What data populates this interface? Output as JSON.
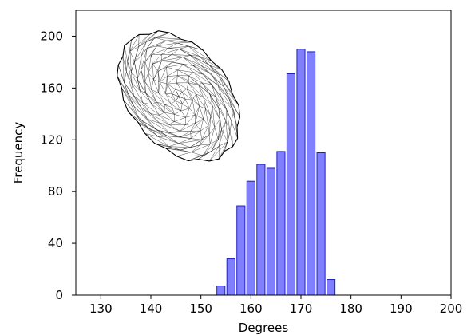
{
  "chart_data": {
    "type": "bar",
    "title": "",
    "xlabel": "Degrees",
    "ylabel": "Frequency",
    "xlim": [
      125,
      200
    ],
    "ylim": [
      0,
      220
    ],
    "x_ticks": [
      130,
      140,
      150,
      160,
      170,
      180,
      190,
      200
    ],
    "y_ticks": [
      0,
      40,
      80,
      120,
      160,
      200
    ],
    "bin_width": 2,
    "bins": [
      {
        "x": 154,
        "value": 7
      },
      {
        "x": 156,
        "value": 28
      },
      {
        "x": 158,
        "value": 69
      },
      {
        "x": 160,
        "value": 88
      },
      {
        "x": 162,
        "value": 101
      },
      {
        "x": 164,
        "value": 98
      },
      {
        "x": 166,
        "value": 111
      },
      {
        "x": 168,
        "value": 171
      },
      {
        "x": 170,
        "value": 190
      },
      {
        "x": 172,
        "value": 188
      },
      {
        "x": 174,
        "value": 110
      },
      {
        "x": 176,
        "value": 12
      }
    ],
    "bar_color": "#8080ff",
    "bar_edge_color": "#2020c0",
    "grid": false,
    "inset_icon": "ellipsoid-wireframe-mesh"
  }
}
